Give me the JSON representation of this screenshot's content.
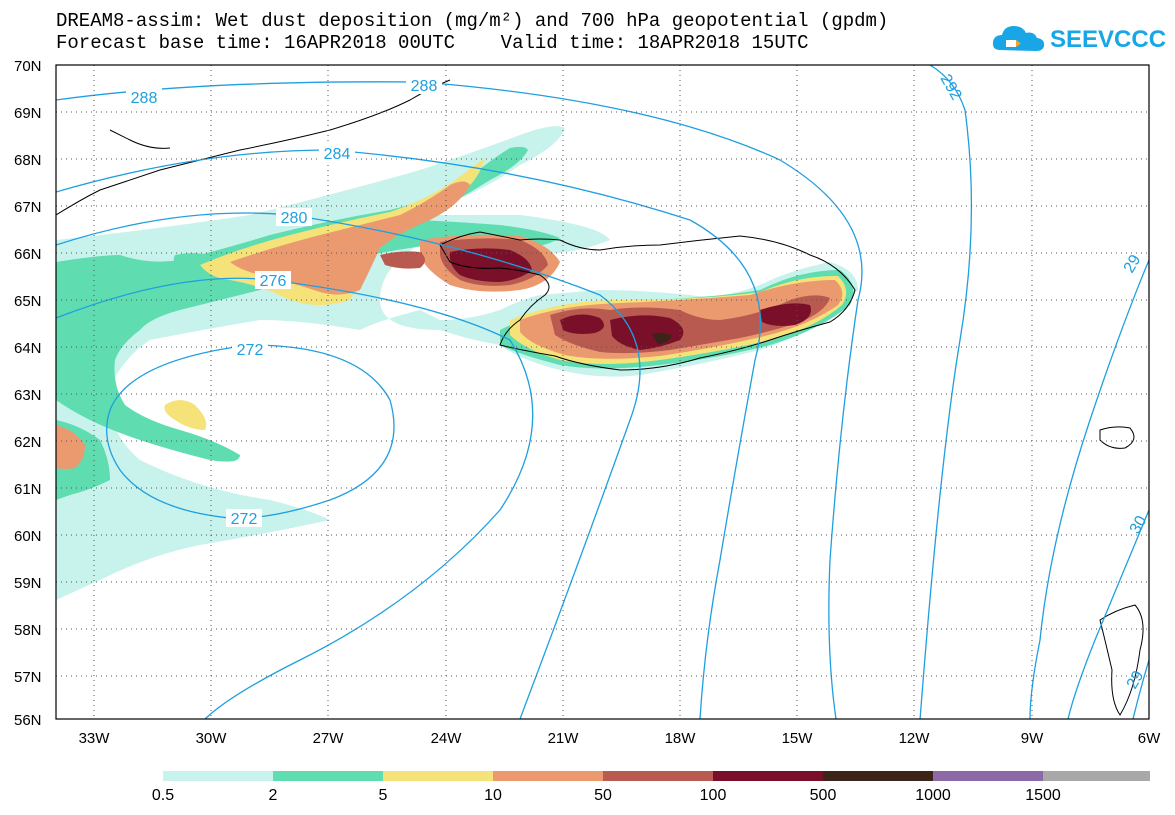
{
  "title_line1": "DREAM8-assim: Wet dust deposition (mg/m²) and 700 hPa geopotential (gpdm)",
  "title_line2": "Forecast base time: 16APR2018 00UTC    Valid time: 18APR2018 15UTC",
  "logo_text": "SEEVCCC",
  "map": {
    "lat_labels": [
      "70N",
      "69N",
      "68N",
      "67N",
      "66N",
      "65N",
      "64N",
      "63N",
      "62N",
      "61N",
      "60N",
      "59N",
      "58N",
      "57N",
      "56N"
    ],
    "lon_labels": [
      "33W",
      "30W",
      "27W",
      "24W",
      "21W",
      "18W",
      "15W",
      "12W",
      "9W",
      "6W"
    ],
    "contour_labels": [
      "288",
      "288",
      "284",
      "280",
      "276",
      "272",
      "272",
      "292",
      "29",
      "30",
      "29"
    ],
    "contour_color": "#1f9fe0"
  },
  "colorbar": {
    "labels": [
      "0.5",
      "2",
      "5",
      "10",
      "50",
      "100",
      "500",
      "1000",
      "1500"
    ],
    "colors": [
      "#c8f2ec",
      "#5fdcb0",
      "#f5e37a",
      "#eb9a70",
      "#b85a50",
      "#7a0f2a",
      "#3c2418",
      "#8c6aa8",
      "#a8a8a8"
    ]
  }
}
